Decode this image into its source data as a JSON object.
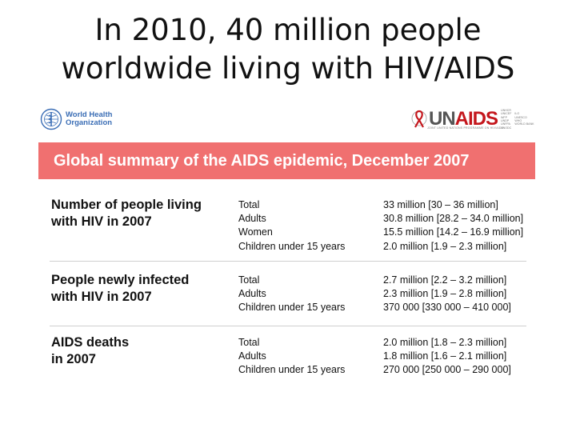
{
  "title": {
    "line1": "In 2010, 40 million people",
    "line2": "worldwide living with HIV/AIDS"
  },
  "logos": {
    "who": {
      "line1": "World Health",
      "line2": "Organization",
      "icon": "who-emblem-icon",
      "color": "#3a6db5"
    },
    "unaids": {
      "un": "UN",
      "aids": "AIDS",
      "icon": "red-ribbon-icon",
      "tagline": "JOINT UNITED NATIONS PROGRAMME ON HIV/AIDS",
      "cosponsors": [
        "UNHCR",
        "UNICEF",
        "WFP",
        "UNDP",
        "UNFPA",
        "UNODC",
        "ILO",
        "UNESCO",
        "WHO",
        "WORLD BANK"
      ],
      "color": "#c4161c"
    }
  },
  "banner": {
    "title": "Global summary of the AIDS epidemic, December 2007",
    "color": "#f07070"
  },
  "sections": [
    {
      "heading": [
        "Number of people living",
        "with HIV in 2007"
      ],
      "rows": [
        {
          "label": "Total",
          "value": "33 million [30 – 36 million]"
        },
        {
          "label": "Adults",
          "value": "30.8 million [28.2 – 34.0 million]"
        },
        {
          "label": "Women",
          "value": "15.5 million [14.2 – 16.9 million]"
        },
        {
          "label": "Children under 15 years",
          "value": "2.0 million [1.9 – 2.3 million]"
        }
      ]
    },
    {
      "heading": [
        "People newly infected",
        "with HIV in 2007"
      ],
      "rows": [
        {
          "label": "Total",
          "value": "2.7 million [2.2 – 3.2 million]"
        },
        {
          "label": "Adults",
          "value": "2.3 million [1.9 – 2.8 million]"
        },
        {
          "label": "Children under 15 years",
          "value": "370 000 [330 000 – 410 000]"
        }
      ]
    },
    {
      "heading": [
        "AIDS deaths",
        "in 2007"
      ],
      "rows": [
        {
          "label": "Total",
          "value": "2.0 million [1.8 – 2.3 million]"
        },
        {
          "label": "Adults",
          "value": "1.8 million [1.6 – 2.1 million]"
        },
        {
          "label": "Children under 15 years",
          "value": "270 000 [250 000 – 290 000]"
        }
      ]
    }
  ]
}
